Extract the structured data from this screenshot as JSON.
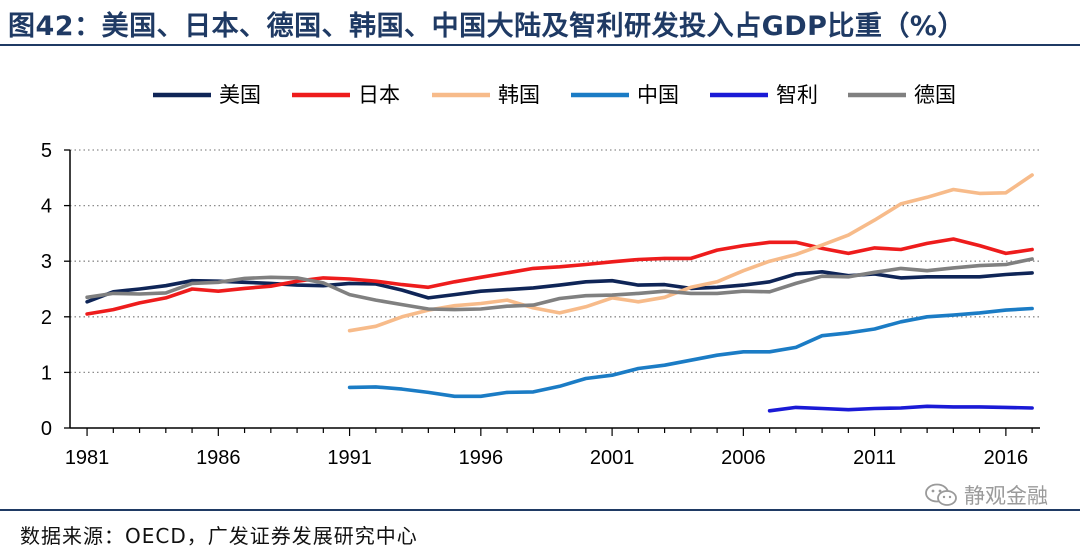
{
  "header": {
    "title": "图42：美国、日本、德国、韩国、中国大陆及智利研发投入占GDP比重（%）"
  },
  "footer": {
    "source": "数据来源：OECD，广发证券发展研究中心",
    "watermark": "静观金融"
  },
  "icons": {
    "watermark_icon": "wechat-icon"
  },
  "chart_data": {
    "type": "line",
    "title": "美国、日本、德国、韩国、中国大陆及智利研发投入占GDP比重（%）",
    "xlabel": "",
    "ylabel": "",
    "xlim": [
      1981,
      2017
    ],
    "ylim": [
      0,
      5
    ],
    "x_ticks": [
      "1981",
      "1986",
      "1991",
      "1996",
      "2001",
      "2006",
      "2011",
      "2016"
    ],
    "y_ticks": [
      "0",
      "1",
      "2",
      "3",
      "4",
      "5"
    ],
    "grid": "horizontal-dotted",
    "legend_position": "top",
    "series": [
      {
        "name": "美国",
        "color": "#0f2557",
        "points": [
          [
            1981,
            2.27
          ],
          [
            1982,
            2.45
          ],
          [
            1983,
            2.5
          ],
          [
            1984,
            2.56
          ],
          [
            1985,
            2.65
          ],
          [
            1986,
            2.64
          ],
          [
            1987,
            2.62
          ],
          [
            1988,
            2.6
          ],
          [
            1989,
            2.57
          ],
          [
            1990,
            2.56
          ],
          [
            1991,
            2.6
          ],
          [
            1992,
            2.59
          ],
          [
            1993,
            2.48
          ],
          [
            1994,
            2.34
          ],
          [
            1995,
            2.4
          ],
          [
            1996,
            2.46
          ],
          [
            1997,
            2.49
          ],
          [
            1998,
            2.52
          ],
          [
            1999,
            2.57
          ],
          [
            2000,
            2.63
          ],
          [
            2001,
            2.65
          ],
          [
            2002,
            2.57
          ],
          [
            2003,
            2.58
          ],
          [
            2004,
            2.51
          ],
          [
            2005,
            2.53
          ],
          [
            2006,
            2.57
          ],
          [
            2007,
            2.63
          ],
          [
            2008,
            2.77
          ],
          [
            2009,
            2.81
          ],
          [
            2010,
            2.74
          ],
          [
            2011,
            2.77
          ],
          [
            2012,
            2.7
          ],
          [
            2013,
            2.72
          ],
          [
            2014,
            2.72
          ],
          [
            2015,
            2.72
          ],
          [
            2016,
            2.76
          ],
          [
            2017,
            2.79
          ]
        ]
      },
      {
        "name": "日本",
        "color": "#ee1c1c",
        "points": [
          [
            1981,
            2.05
          ],
          [
            1982,
            2.13
          ],
          [
            1983,
            2.25
          ],
          [
            1984,
            2.34
          ],
          [
            1985,
            2.5
          ],
          [
            1986,
            2.46
          ],
          [
            1987,
            2.51
          ],
          [
            1988,
            2.55
          ],
          [
            1989,
            2.64
          ],
          [
            1990,
            2.7
          ],
          [
            1991,
            2.68
          ],
          [
            1992,
            2.64
          ],
          [
            1993,
            2.58
          ],
          [
            1994,
            2.53
          ],
          [
            1995,
            2.63
          ],
          [
            1996,
            2.71
          ],
          [
            1997,
            2.79
          ],
          [
            1998,
            2.87
          ],
          [
            1999,
            2.9
          ],
          [
            2000,
            2.94
          ],
          [
            2001,
            2.99
          ],
          [
            2002,
            3.03
          ],
          [
            2003,
            3.05
          ],
          [
            2004,
            3.05
          ],
          [
            2005,
            3.2
          ],
          [
            2006,
            3.28
          ],
          [
            2007,
            3.34
          ],
          [
            2008,
            3.34
          ],
          [
            2009,
            3.23
          ],
          [
            2010,
            3.14
          ],
          [
            2011,
            3.24
          ],
          [
            2012,
            3.21
          ],
          [
            2013,
            3.32
          ],
          [
            2014,
            3.4
          ],
          [
            2015,
            3.28
          ],
          [
            2016,
            3.14
          ],
          [
            2017,
            3.21
          ]
        ]
      },
      {
        "name": "韩国",
        "color": "#f7bb8a",
        "points": [
          [
            1991,
            1.75
          ],
          [
            1992,
            1.83
          ],
          [
            1993,
            2.0
          ],
          [
            1994,
            2.12
          ],
          [
            1995,
            2.2
          ],
          [
            1996,
            2.24
          ],
          [
            1997,
            2.3
          ],
          [
            1998,
            2.16
          ],
          [
            1999,
            2.07
          ],
          [
            2000,
            2.18
          ],
          [
            2001,
            2.34
          ],
          [
            2002,
            2.27
          ],
          [
            2003,
            2.35
          ],
          [
            2004,
            2.53
          ],
          [
            2005,
            2.63
          ],
          [
            2006,
            2.83
          ],
          [
            2007,
            3.0
          ],
          [
            2008,
            3.12
          ],
          [
            2009,
            3.29
          ],
          [
            2010,
            3.47
          ],
          [
            2011,
            3.74
          ],
          [
            2012,
            4.03
          ],
          [
            2013,
            4.15
          ],
          [
            2014,
            4.29
          ],
          [
            2015,
            4.22
          ],
          [
            2016,
            4.23
          ],
          [
            2017,
            4.55
          ]
        ]
      },
      {
        "name": "中国",
        "color": "#1b7cc5",
        "points": [
          [
            1991,
            0.73
          ],
          [
            1992,
            0.74
          ],
          [
            1993,
            0.7
          ],
          [
            1994,
            0.64
          ],
          [
            1995,
            0.57
          ],
          [
            1996,
            0.57
          ],
          [
            1997,
            0.64
          ],
          [
            1998,
            0.65
          ],
          [
            1999,
            0.75
          ],
          [
            2000,
            0.89
          ],
          [
            2001,
            0.95
          ],
          [
            2002,
            1.07
          ],
          [
            2003,
            1.13
          ],
          [
            2004,
            1.22
          ],
          [
            2005,
            1.31
          ],
          [
            2006,
            1.37
          ],
          [
            2007,
            1.37
          ],
          [
            2008,
            1.45
          ],
          [
            2009,
            1.66
          ],
          [
            2010,
            1.71
          ],
          [
            2011,
            1.78
          ],
          [
            2012,
            1.91
          ],
          [
            2013,
            2.0
          ],
          [
            2014,
            2.03
          ],
          [
            2015,
            2.07
          ],
          [
            2016,
            2.12
          ],
          [
            2017,
            2.15
          ]
        ]
      },
      {
        "name": "智利",
        "color": "#1a1ad6",
        "points": [
          [
            2007,
            0.31
          ],
          [
            2008,
            0.37
          ],
          [
            2009,
            0.35
          ],
          [
            2010,
            0.33
          ],
          [
            2011,
            0.35
          ],
          [
            2012,
            0.36
          ],
          [
            2013,
            0.39
          ],
          [
            2014,
            0.38
          ],
          [
            2015,
            0.38
          ],
          [
            2016,
            0.37
          ],
          [
            2017,
            0.36
          ]
        ]
      },
      {
        "name": "德国",
        "color": "#808080",
        "points": [
          [
            1981,
            2.35
          ],
          [
            1982,
            2.42
          ],
          [
            1983,
            2.41
          ],
          [
            1984,
            2.43
          ],
          [
            1985,
            2.6
          ],
          [
            1986,
            2.62
          ],
          [
            1987,
            2.69
          ],
          [
            1988,
            2.71
          ],
          [
            1989,
            2.7
          ],
          [
            1990,
            2.61
          ],
          [
            1991,
            2.4
          ],
          [
            1992,
            2.3
          ],
          [
            1993,
            2.22
          ],
          [
            1994,
            2.14
          ],
          [
            1995,
            2.13
          ],
          [
            1996,
            2.14
          ],
          [
            1997,
            2.19
          ],
          [
            1998,
            2.21
          ],
          [
            1999,
            2.33
          ],
          [
            2000,
            2.38
          ],
          [
            2001,
            2.39
          ],
          [
            2002,
            2.42
          ],
          [
            2003,
            2.46
          ],
          [
            2004,
            2.42
          ],
          [
            2005,
            2.42
          ],
          [
            2006,
            2.46
          ],
          [
            2007,
            2.45
          ],
          [
            2008,
            2.6
          ],
          [
            2009,
            2.73
          ],
          [
            2010,
            2.72
          ],
          [
            2011,
            2.8
          ],
          [
            2012,
            2.87
          ],
          [
            2013,
            2.83
          ],
          [
            2014,
            2.88
          ],
          [
            2015,
            2.92
          ],
          [
            2016,
            2.94
          ],
          [
            2017,
            3.04
          ]
        ]
      }
    ]
  }
}
